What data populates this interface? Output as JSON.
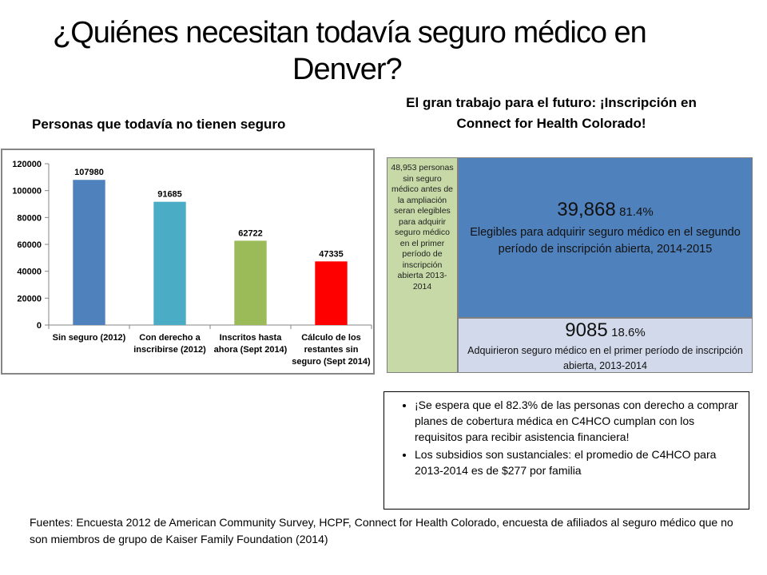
{
  "slide": {
    "title_line1": "¿Quiénes necesitan todavía seguro médico en",
    "title_line2": "Denver?",
    "chart_heading": "Personas que todavía no tienen seguro",
    "enroll_heading": "El gran trabajo para el futuro: ¡Inscripción en Connect for Health Colorado!",
    "green_box_text": "48,953 personas sin seguro médico antes de la ampliación seran elegibles para adquirir seguro médico en el primer período de inscripción abierta 2013-2014",
    "blue_box": {
      "number": "39,868",
      "percent": "81.4%",
      "description": "Elegibles para adquirir seguro médico en el segundo período de inscripción abierta, 2014-2015"
    },
    "gray_box": {
      "number": "9085",
      "percent": "18.6%",
      "description": "Adquirieron seguro médico en el primer período de inscripción abierta, 2013-2014"
    },
    "bullets": [
      "¡Se espera que el 82.3% de las personas con derecho a comprar planes de cobertura médica en C4HCO cumplan con los requisitos para recibir asistencia financiera!",
      "Los subsidios son sustanciales: el promedio de C4HCO para 2013-2014 es de $277 por familia"
    ],
    "sources": "Fuentes:  Encuesta 2012 de American Community Survey, HCPF, Connect for Health Colorado, encuesta de afiliados al seguro médico que no son miembros de grupo de Kaiser Family Foundation (2014)"
  },
  "chart_data": {
    "type": "bar",
    "categories": [
      [
        "Sin seguro (2012)"
      ],
      [
        "Con derecho a",
        "inscribirse (2012)"
      ],
      [
        "Inscritos hasta",
        "ahora (Sept 2014)"
      ],
      [
        "Cálculo de los",
        "restantes sin",
        "seguro (Sept 2014)"
      ]
    ],
    "values": [
      107980,
      91685,
      62722,
      47335
    ],
    "data_labels": [
      "107980",
      "91685",
      "62722",
      "47335"
    ],
    "colors": [
      "#4f81bd",
      "#4bacc6",
      "#9bbb59",
      "#ff0000"
    ],
    "ylim": [
      0,
      120000
    ],
    "yticks": [
      0,
      20000,
      40000,
      60000,
      80000,
      100000,
      120000
    ],
    "title": "",
    "xlabel": "",
    "ylabel": "",
    "grid": false,
    "legend": "none"
  }
}
